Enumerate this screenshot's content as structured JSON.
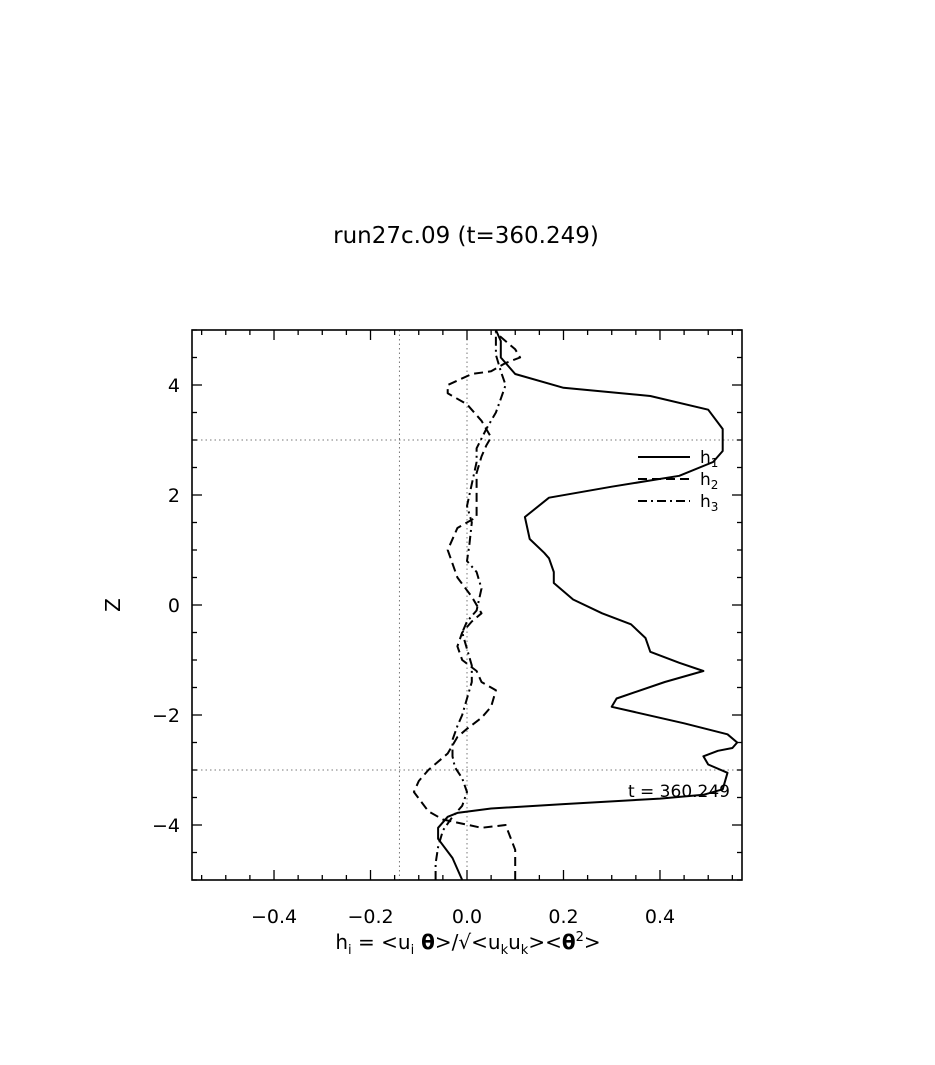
{
  "chart_data": {
    "type": "line",
    "title": "run27c.09 (t=360.249)",
    "xlabel": {
      "parts": [
        {
          "t": "h"
        },
        {
          "t": "i",
          "sub": true
        },
        {
          "t": " = <u"
        },
        {
          "t": "i",
          "sub": true
        },
        {
          "t": " θ",
          "bold": true
        },
        {
          "t": ">/√<u"
        },
        {
          "t": "k",
          "sub": true
        },
        {
          "t": "u"
        },
        {
          "t": "k",
          "sub": true
        },
        {
          "t": "><"
        },
        {
          "t": "θ",
          "bold": true
        },
        {
          "t": "2",
          "sup": true
        },
        {
          "t": ">"
        }
      ]
    },
    "ylabel": "Z",
    "xlim": [
      -0.57,
      0.57
    ],
    "ylim": [
      -5,
      5
    ],
    "xticks": [
      -0.4,
      -0.2,
      0.0,
      0.2,
      0.4
    ],
    "xtick_labels": [
      "−0.4",
      "−0.2",
      "0.0",
      "0.2",
      "0.4"
    ],
    "yticks": [
      4,
      2,
      0,
      -2,
      -4
    ],
    "ytick_labels": [
      "4",
      "2",
      "0",
      "−2",
      "−4"
    ],
    "x_minor_step": 0.05,
    "y_minor_step": 0.5,
    "grid_lines": {
      "x": [
        -0.14,
        0.0
      ],
      "y": [
        3,
        -3
      ]
    },
    "legend_position": "right",
    "annotation": "t = 360.249",
    "series": [
      {
        "name": "h",
        "name_sub": "1",
        "dash": "solid",
        "x": [
          -0.01,
          -0.03,
          -0.06,
          -0.06,
          -0.04,
          -0.02,
          0.05,
          0.2,
          0.4,
          0.49,
          0.53,
          0.54,
          0.5,
          0.49,
          0.52,
          0.55,
          0.56,
          0.54,
          0.45,
          0.3,
          0.31,
          0.41,
          0.49,
          0.44,
          0.38,
          0.37,
          0.34,
          0.28,
          0.22,
          0.18,
          0.18,
          0.17,
          0.16,
          0.13,
          0.12,
          0.17,
          0.3,
          0.44,
          0.51,
          0.53,
          0.53,
          0.5,
          0.38,
          0.2,
          0.1,
          0.07,
          0.07,
          0.06
        ],
        "y": [
          -5.0,
          -4.6,
          -4.25,
          -4.05,
          -3.85,
          -3.78,
          -3.7,
          -3.62,
          -3.52,
          -3.45,
          -3.35,
          -3.05,
          -2.9,
          -2.75,
          -2.65,
          -2.6,
          -2.5,
          -2.35,
          -2.15,
          -1.85,
          -1.7,
          -1.4,
          -1.2,
          -1.05,
          -0.85,
          -0.6,
          -0.35,
          -0.15,
          0.1,
          0.4,
          0.6,
          0.85,
          0.95,
          1.2,
          1.6,
          1.95,
          2.15,
          2.35,
          2.6,
          2.8,
          3.2,
          3.55,
          3.8,
          3.95,
          4.2,
          4.5,
          4.8,
          5.0
        ]
      },
      {
        "name": "h",
        "name_sub": "2",
        "dash": "dashed",
        "x": [
          0.1,
          0.1,
          0.1,
          0.08,
          0.03,
          -0.05,
          -0.08,
          -0.11,
          -0.1,
          -0.08,
          -0.04,
          -0.02,
          0.0,
          0.03,
          0.05,
          0.06,
          0.03,
          0.02,
          -0.01,
          -0.02,
          -0.01,
          0.01,
          0.03,
          0.01,
          -0.02,
          -0.04,
          -0.02,
          0.02,
          0.02,
          0.02,
          0.02,
          0.03,
          0.04,
          0.05,
          0.03,
          0.0,
          -0.04,
          -0.04,
          0.01,
          0.05,
          0.08,
          0.11,
          0.1,
          0.06
        ],
        "y": [
          -5.0,
          -4.7,
          -4.45,
          -4.0,
          -4.05,
          -3.9,
          -3.75,
          -3.4,
          -3.2,
          -3.0,
          -2.7,
          -2.4,
          -2.25,
          -2.05,
          -1.85,
          -1.55,
          -1.4,
          -1.2,
          -1.0,
          -0.75,
          -0.5,
          -0.3,
          -0.15,
          0.15,
          0.5,
          1.0,
          1.4,
          1.6,
          1.8,
          2.1,
          2.4,
          2.7,
          2.9,
          3.05,
          3.35,
          3.65,
          3.85,
          4.0,
          4.2,
          4.25,
          4.4,
          4.5,
          4.65,
          4.95
        ]
      },
      {
        "name": "h",
        "name_sub": "3",
        "dash": "dashdot",
        "x": [
          -0.065,
          -0.065,
          -0.06,
          -0.05,
          -0.03,
          -0.01,
          0.0,
          -0.01,
          -0.025,
          -0.03,
          -0.03,
          -0.02,
          -0.01,
          0.0,
          0.01,
          0.01,
          0.0,
          -0.01,
          0.0,
          0.02,
          0.03,
          0.02,
          0.0,
          0.005,
          0.01,
          0.0,
          0.01,
          0.02,
          0.02,
          0.04,
          0.06,
          0.07,
          0.08,
          0.07,
          0.06,
          0.06,
          0.06
        ],
        "y": [
          -5.0,
          -4.7,
          -4.4,
          -4.1,
          -3.85,
          -3.65,
          -3.4,
          -3.15,
          -2.95,
          -2.75,
          -2.45,
          -2.2,
          -2.0,
          -1.7,
          -1.4,
          -1.1,
          -0.8,
          -0.5,
          -0.3,
          -0.1,
          0.3,
          0.6,
          0.8,
          1.1,
          1.5,
          1.8,
          2.2,
          2.6,
          2.85,
          3.2,
          3.5,
          3.75,
          4.0,
          4.25,
          4.55,
          4.8,
          5.0
        ]
      }
    ]
  }
}
